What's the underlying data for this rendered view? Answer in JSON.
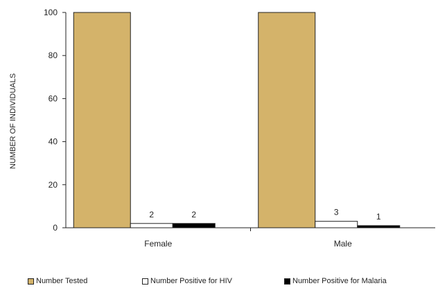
{
  "chart_data": {
    "type": "bar",
    "title": "",
    "xlabel": "",
    "ylabel": "NUMBER OF INDIVIDUALS",
    "ylim": [
      0,
      100
    ],
    "yticks": [
      0,
      20,
      40,
      60,
      80,
      100
    ],
    "categories": [
      "Female",
      "Male"
    ],
    "series": [
      {
        "name": "Number Tested",
        "values": [
          100,
          100
        ],
        "color": "#d4b36a",
        "labels": [
          "",
          ""
        ]
      },
      {
        "name": "Number Positive for HIV",
        "values": [
          2,
          3
        ],
        "color": "#ffffff",
        "labels": [
          "2",
          "3"
        ]
      },
      {
        "name": "Number Positive for Malaria",
        "values": [
          2,
          1
        ],
        "color": "#000000",
        "labels": [
          "2",
          "1"
        ]
      }
    ],
    "grid": false,
    "legend_position": "bottom"
  }
}
